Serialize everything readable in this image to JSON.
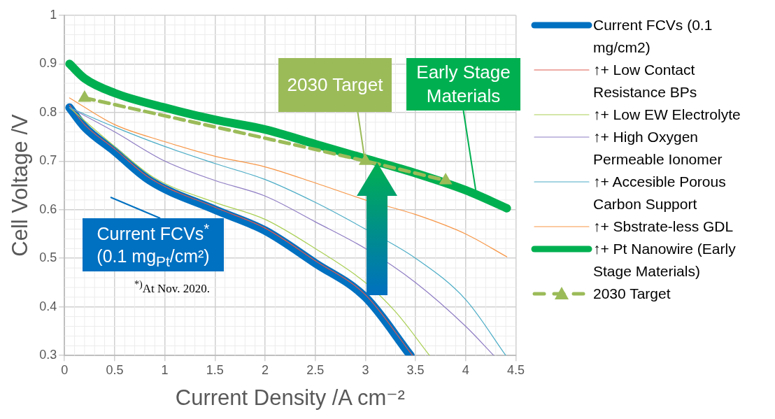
{
  "chart_data": {
    "type": "line",
    "xlabel": "Current Density /A cm⁻²",
    "ylabel": "Cell Voltage /V",
    "xlim": [
      0,
      4.5
    ],
    "ylim": [
      0.3,
      1
    ],
    "xticks": [
      0,
      0.5,
      1,
      1.5,
      2,
      2.5,
      3,
      3.5,
      4,
      4.5
    ],
    "yticks": [
      0.3,
      0.4,
      0.5,
      0.6,
      0.7,
      0.8,
      0.9,
      1
    ],
    "grid": true,
    "legend": "right",
    "marker": "none",
    "line_style": "solid",
    "series": [
      {
        "name": "Current FCVs (0.1 mg/cm2)",
        "color": "#0070c0",
        "x": [
          0.05,
          0.2,
          0.5,
          0.85,
          1.5,
          2,
          2.5,
          3,
          3.45
        ],
        "values": [
          0.81,
          0.77,
          0.72,
          0.66,
          0.6,
          0.557,
          0.49,
          0.42,
          0.3
        ]
      },
      {
        "name": "↑+ Low Contact Resistance BPs",
        "color": "#e05a4f",
        "x": [
          0.05,
          0.2,
          0.5,
          0.85,
          1.5,
          2,
          2.5,
          3,
          3.47
        ],
        "values": [
          0.815,
          0.775,
          0.725,
          0.665,
          0.605,
          0.562,
          0.495,
          0.425,
          0.3
        ]
      },
      {
        "name": "↑+ Low EW Electrolyte",
        "color": "#a9cf54",
        "x": [
          0.05,
          0.5,
          0.9,
          1.5,
          2,
          2.5,
          3,
          3.3,
          3.64
        ],
        "values": [
          0.81,
          0.73,
          0.665,
          0.615,
          0.58,
          0.52,
          0.45,
          0.39,
          0.3
        ]
      },
      {
        "name": "↑+ High Oxygen Permeable Ionomer",
        "color": "#8e7cc3",
        "x": [
          0.05,
          0.5,
          1,
          1.5,
          2,
          2.5,
          3,
          3.5,
          4,
          4.28
        ],
        "values": [
          0.81,
          0.76,
          0.7,
          0.66,
          0.628,
          0.575,
          0.52,
          0.45,
          0.36,
          0.3
        ]
      },
      {
        "name": "↑+ Accesible Porous Carbon Support",
        "color": "#4bacc6",
        "x": [
          0.05,
          0.5,
          1,
          1.5,
          2,
          2.5,
          3,
          3.5,
          4,
          4.4
        ],
        "values": [
          0.81,
          0.77,
          0.73,
          0.695,
          0.662,
          0.615,
          0.56,
          0.5,
          0.415,
          0.3
        ]
      },
      {
        "name": "↑+ Sbstrate-less GDL",
        "color": "#f79646",
        "x": [
          0.05,
          0.5,
          1,
          1.5,
          2,
          2.5,
          3,
          3.5,
          4,
          4.41
        ],
        "values": [
          0.83,
          0.775,
          0.74,
          0.71,
          0.688,
          0.655,
          0.62,
          0.59,
          0.55,
          0.503
        ]
      },
      {
        "name": "↑+ Pt Nanowire (Early Stage Materials)",
        "color": "#00b050",
        "x": [
          0.05,
          0.2,
          0.5,
          1,
          1.5,
          2,
          2.5,
          3,
          3.5,
          4,
          4.41
        ],
        "values": [
          0.9,
          0.87,
          0.84,
          0.81,
          0.785,
          0.765,
          0.735,
          0.705,
          0.675,
          0.64,
          0.603
        ]
      },
      {
        "name": "2030 Target",
        "color": "#9bbb59",
        "line_style": "dashed",
        "marker": "triangle",
        "x": [
          0.2,
          3,
          3.8
        ],
        "values": [
          0.83,
          0.7,
          0.66
        ]
      }
    ],
    "annotations": [
      {
        "text": "2030 Target",
        "x": 3,
        "y": 0.695
      },
      {
        "text": "Early Stage Materials",
        "x": 4.1,
        "y": 0.64
      },
      "Current FCVs$^{*}$ (0.1 mg$_{Pt}$/cm²)",
      "$^{*)}$At Nov. 2020."
    ]
  }
}
